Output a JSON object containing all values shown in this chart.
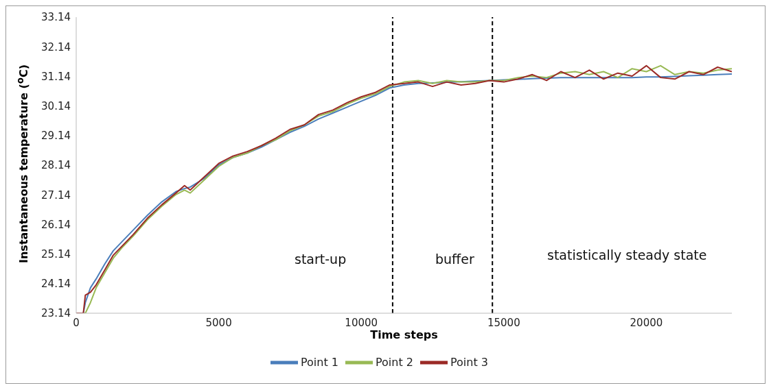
{
  "chart_data": {
    "type": "line",
    "xlabel": "Time steps",
    "ylabel": "Instantaneous temperature ($^{o}$C)",
    "x": [
      0,
      250,
      320,
      500,
      700,
      1000,
      1300,
      1600,
      2000,
      2500,
      3000,
      3500,
      3800,
      4000,
      4500,
      5000,
      5500,
      6000,
      6500,
      7000,
      7500,
      8000,
      8500,
      9000,
      9500,
      10000,
      10500,
      11000,
      11500,
      12000,
      12500,
      13000,
      13500,
      14000,
      14500,
      15000,
      15500,
      16000,
      16500,
      17000,
      17500,
      18000,
      18500,
      19000,
      19500,
      20000,
      20500,
      21000,
      21500,
      22000,
      22500,
      23000
    ],
    "series": [
      {
        "name": "Point 1",
        "color": "#4a7ebb",
        "values": [
          23.14,
          23.14,
          23.5,
          24.0,
          24.3,
          24.8,
          25.25,
          25.55,
          25.95,
          26.45,
          26.9,
          27.25,
          27.35,
          27.4,
          27.7,
          28.15,
          28.4,
          28.55,
          28.75,
          29.0,
          29.25,
          29.45,
          29.7,
          29.9,
          30.1,
          30.3,
          30.5,
          30.75,
          30.85,
          30.9,
          30.92,
          30.94,
          30.96,
          30.98,
          31.0,
          31.02,
          31.04,
          31.06,
          31.08,
          31.1,
          31.1,
          31.1,
          31.1,
          31.1,
          31.1,
          31.12,
          31.12,
          31.14,
          31.16,
          31.18,
          31.2,
          31.22
        ]
      },
      {
        "name": "Point 2",
        "color": "#98b954",
        "values": [
          23.14,
          23.14,
          23.14,
          23.5,
          24.0,
          24.5,
          25.0,
          25.35,
          25.75,
          26.3,
          26.75,
          27.15,
          27.3,
          27.2,
          27.65,
          28.1,
          28.4,
          28.55,
          28.8,
          29.0,
          29.3,
          29.5,
          29.8,
          29.95,
          30.2,
          30.4,
          30.55,
          30.8,
          30.95,
          31.0,
          30.9,
          31.0,
          30.95,
          30.95,
          31.0,
          31.0,
          31.1,
          31.15,
          31.1,
          31.25,
          31.3,
          31.2,
          31.3,
          31.1,
          31.4,
          31.3,
          31.5,
          31.2,
          31.3,
          31.25,
          31.35,
          31.4
        ]
      },
      {
        "name": "Point 3",
        "color": "#9b2a26",
        "values": [
          23.14,
          23.14,
          23.75,
          23.85,
          24.1,
          24.6,
          25.1,
          25.4,
          25.8,
          26.35,
          26.8,
          27.2,
          27.45,
          27.3,
          27.75,
          28.2,
          28.45,
          28.6,
          28.8,
          29.05,
          29.35,
          29.5,
          29.85,
          30.0,
          30.25,
          30.45,
          30.6,
          30.85,
          30.9,
          30.95,
          30.8,
          30.95,
          30.85,
          30.9,
          31.0,
          30.95,
          31.05,
          31.2,
          31.0,
          31.3,
          31.1,
          31.35,
          31.05,
          31.25,
          31.15,
          31.5,
          31.1,
          31.05,
          31.3,
          31.2,
          31.45,
          31.3
        ]
      }
    ],
    "xlim": [
      0,
      23000
    ],
    "xticks": [
      0,
      5000,
      10000,
      15000,
      20000
    ],
    "ylim": [
      23.14,
      33.14
    ],
    "yticks": [
      23.14,
      24.14,
      25.14,
      26.14,
      27.14,
      28.14,
      29.14,
      30.14,
      31.14,
      32.14,
      33.14
    ],
    "ref_lines": [
      {
        "axis": "x",
        "value": 11100,
        "color": "#000000",
        "line_style": "dashed"
      },
      {
        "axis": "x",
        "value": 14600,
        "color": "#000000",
        "line_style": "dashed"
      }
    ],
    "annotations": [
      "start-up",
      "buffer",
      "statistically steady state"
    ],
    "grid": false,
    "legend": "bottom",
    "marker": "none",
    "line_style": "solid"
  }
}
